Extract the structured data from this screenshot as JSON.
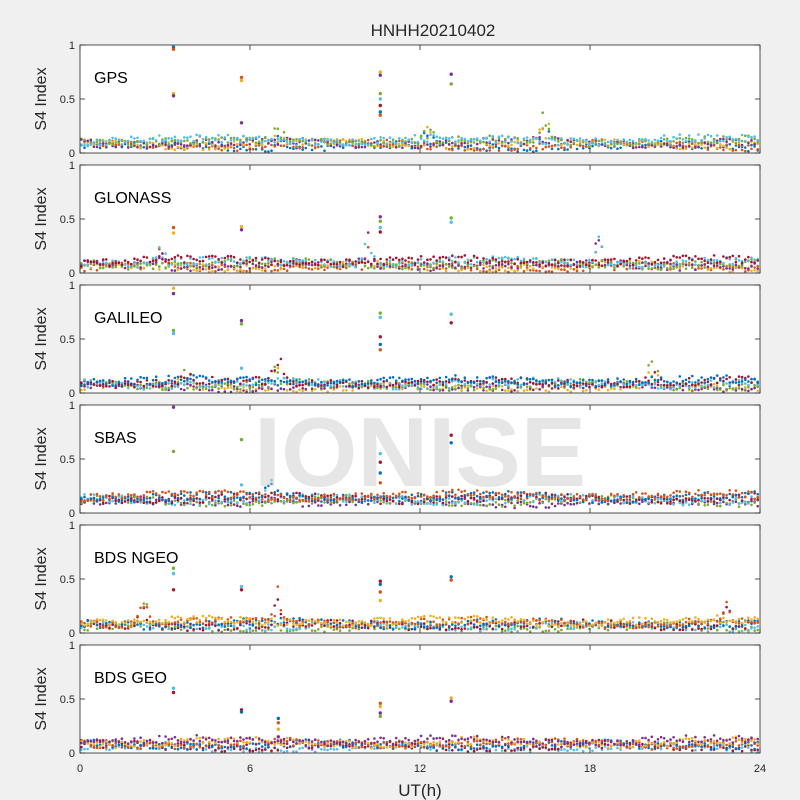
{
  "figure": {
    "title": "HNHH20210402",
    "xlabel": "UT(h)",
    "watermark": "IONISE",
    "background": "#f0f0f0"
  },
  "chart_data": {
    "type": "scatter",
    "layout": "6 stacked panels sharing x-axis",
    "x_label": "UT(h)",
    "x_range": [
      0,
      24
    ],
    "x_ticks": [
      0,
      6,
      12,
      18,
      24
    ],
    "series_colors": [
      "#0072BD",
      "#D95319",
      "#EDB120",
      "#7E2F8E",
      "#77AC30",
      "#4DBEEE",
      "#A2142F"
    ],
    "panels": [
      {
        "label": "GPS",
        "ylabel": "S4 Index",
        "ylim": [
          0,
          1
        ],
        "yticks": [
          0,
          0.5,
          1
        ],
        "yticklabels": [
          "0",
          "0.5",
          "1"
        ],
        "baseline": 0.09,
        "spikes": [
          {
            "x": 3.3,
            "values": [
              0.98,
              0.96,
              0.55,
              0.53
            ]
          },
          {
            "x": 5.7,
            "values": [
              0.7,
              0.67,
              0.28
            ]
          },
          {
            "x": 10.6,
            "values": [
              0.75,
              0.72,
              0.55,
              0.5,
              0.44,
              0.38,
              0.35
            ]
          },
          {
            "x": 13.1,
            "values": [
              0.73,
              0.64
            ]
          }
        ],
        "bumps": [
          {
            "x": 16.4,
            "height": 0.3
          },
          {
            "x": 7.0,
            "height": 0.18
          },
          {
            "x": 12.3,
            "height": 0.22
          }
        ]
      },
      {
        "label": "GLONASS",
        "ylabel": "S4 Index",
        "ylim": [
          0,
          1
        ],
        "yticks": [
          0,
          0.5,
          1
        ],
        "yticklabels": [
          "0",
          "0.5",
          "1"
        ],
        "baseline": 0.08,
        "spikes": [
          {
            "x": 3.3,
            "values": [
              0.42,
              0.37
            ]
          },
          {
            "x": 5.7,
            "values": [
              0.43,
              0.4
            ]
          },
          {
            "x": 10.6,
            "values": [
              0.52,
              0.48,
              0.42,
              0.38
            ]
          },
          {
            "x": 13.1,
            "values": [
              0.51,
              0.47
            ]
          }
        ],
        "bumps": [
          {
            "x": 10.1,
            "height": 0.34
          },
          {
            "x": 18.3,
            "height": 0.32
          },
          {
            "x": 2.8,
            "height": 0.18
          }
        ]
      },
      {
        "label": "GALILEO",
        "ylabel": "S4 Index",
        "ylim": [
          0,
          1
        ],
        "yticks": [
          0,
          0.5,
          1
        ],
        "yticklabels": [
          "0",
          "0.5",
          "1"
        ],
        "baseline": 0.08,
        "spikes": [
          {
            "x": 3.3,
            "values": [
              0.97,
              0.92,
              0.58,
              0.55
            ]
          },
          {
            "x": 5.7,
            "values": [
              0.67,
              0.64,
              0.23
            ]
          },
          {
            "x": 10.6,
            "values": [
              0.74,
              0.7,
              0.52,
              0.45,
              0.4
            ]
          },
          {
            "x": 13.1,
            "values": [
              0.73,
              0.65
            ]
          }
        ],
        "bumps": [
          {
            "x": 20.2,
            "height": 0.3
          },
          {
            "x": 3.7,
            "height": 0.2
          },
          {
            "x": 7.0,
            "height": 0.32
          }
        ]
      },
      {
        "label": "SBAS",
        "ylabel": "S4 Index",
        "ylim": [
          0,
          1
        ],
        "yticks": [
          0,
          0.5,
          1
        ],
        "yticklabels": [
          "0",
          "0.5",
          "1"
        ],
        "baseline": 0.13,
        "spikes": [
          {
            "x": 3.3,
            "values": [
              0.98,
              0.57
            ]
          },
          {
            "x": 5.7,
            "values": [
              0.68,
              0.26
            ]
          },
          {
            "x": 10.6,
            "values": [
              0.55,
              0.47,
              0.37,
              0.28
            ]
          },
          {
            "x": 13.1,
            "values": [
              0.72,
              0.65
            ]
          }
        ],
        "bumps": [
          {
            "x": 6.8,
            "height": 0.3
          }
        ]
      },
      {
        "label": "BDS NGEO",
        "ylabel": "S4 Index",
        "ylim": [
          0,
          1
        ],
        "yticks": [
          0,
          0.5,
          1
        ],
        "yticklabels": [
          "0",
          "0.5",
          "1"
        ],
        "baseline": 0.08,
        "spikes": [
          {
            "x": 3.3,
            "values": [
              0.6,
              0.55,
              0.4
            ]
          },
          {
            "x": 5.7,
            "values": [
              0.43,
              0.4
            ]
          },
          {
            "x": 10.6,
            "values": [
              0.48,
              0.45,
              0.38,
              0.3
            ]
          },
          {
            "x": 13.1,
            "values": [
              0.52,
              0.49
            ]
          }
        ],
        "bumps": [
          {
            "x": 7.0,
            "height": 0.32
          },
          {
            "x": 2.3,
            "height": 0.28
          },
          {
            "x": 22.8,
            "height": 0.2
          }
        ]
      },
      {
        "label": "BDS GEO",
        "ylabel": "S4 Index",
        "ylim": [
          0,
          1
        ],
        "yticks": [
          0,
          0.5,
          1
        ],
        "yticklabels": [
          "0",
          "0.5",
          "1"
        ],
        "baseline": 0.08,
        "spikes": [
          {
            "x": 3.3,
            "values": [
              0.6,
              0.56
            ]
          },
          {
            "x": 5.7,
            "values": [
              0.4,
              0.38
            ]
          },
          {
            "x": 7.0,
            "values": [
              0.32,
              0.28,
              0.22,
              0.15
            ]
          },
          {
            "x": 10.6,
            "values": [
              0.46,
              0.43,
              0.37,
              0.34
            ]
          },
          {
            "x": 13.1,
            "values": [
              0.51,
              0.48
            ]
          }
        ],
        "bumps": []
      }
    ]
  }
}
